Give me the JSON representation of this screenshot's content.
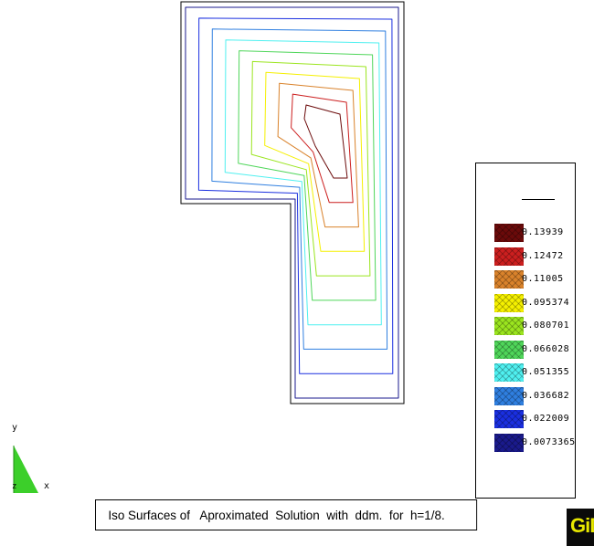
{
  "caption": "Iso Surfaces of   Aproximated  Solution  with  ddm.  for  h=1/8.",
  "axes": {
    "x": "x",
    "y": "y",
    "z": "z"
  },
  "logo_text": "GiD",
  "legend": {
    "levels": [
      {
        "value": "0.13939",
        "color": "#6b0a0a"
      },
      {
        "value": "0.12472",
        "color": "#cc1f1f"
      },
      {
        "value": "0.11005",
        "color": "#d9822b"
      },
      {
        "value": "0.095374",
        "color": "#f5f000"
      },
      {
        "value": "0.080701",
        "color": "#9be51f"
      },
      {
        "value": "0.066028",
        "color": "#4fd65a"
      },
      {
        "value": "0.051355",
        "color": "#4ff0f0"
      },
      {
        "value": "0.036682",
        "color": "#2f7fe0"
      },
      {
        "value": "0.022009",
        "color": "#1a2fe0"
      },
      {
        "value": "0.0073365",
        "color": "#1a1a8c"
      }
    ]
  },
  "colors": {
    "outline": "#000000",
    "background": "#ffffff"
  }
}
